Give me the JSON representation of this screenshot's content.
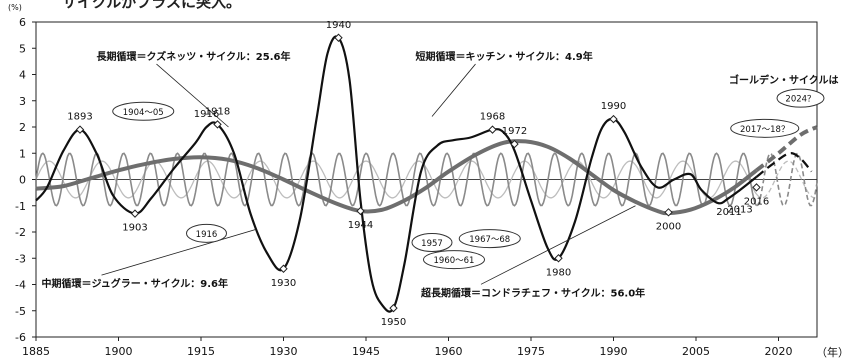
{
  "page": {
    "top_caption": "サイクルがプラスに突入。"
  },
  "chart_data": {
    "type": "line",
    "y_unit": "(%)",
    "x_unit": "（年）",
    "xlim": [
      1885,
      2027
    ],
    "ylim": [
      -6,
      6
    ],
    "x_ticks": [
      1885,
      1900,
      1915,
      1930,
      1945,
      1960,
      1975,
      1990,
      2005,
      2020
    ],
    "y_ticks": [
      6,
      5,
      4,
      3,
      2,
      1,
      0,
      -1,
      -2,
      -3,
      -4,
      -5,
      -6
    ],
    "series": [
      {
        "name": "短期循環＝キッチン・サイクル：4.9年",
        "role": "kitchin",
        "color": "#8a8a8a",
        "period": 4.9,
        "amplitude": 1.0
      },
      {
        "name": "中期循環＝ジュグラー・サイクル：9.6年",
        "role": "juglar",
        "color": "#bdbdbd",
        "period": 9.6,
        "amplitude": 0.7
      },
      {
        "name": "長期循環＝クズネッツ・サイクル：25.6年",
        "role": "kuznets",
        "color": "#111111",
        "period": 25.6,
        "points": [
          [
            1885,
            -0.8
          ],
          [
            1887,
            -0.3
          ],
          [
            1890,
            1.1
          ],
          [
            1893,
            1.9
          ],
          [
            1896,
            1.0
          ],
          [
            1899,
            -0.6
          ],
          [
            1903,
            -1.3
          ],
          [
            1906,
            -0.7
          ],
          [
            1910,
            0.4
          ],
          [
            1914,
            1.4
          ],
          [
            1916,
            2.0
          ],
          [
            1918,
            2.1
          ],
          [
            1921,
            1.0
          ],
          [
            1924,
            -1.3
          ],
          [
            1927,
            -2.8
          ],
          [
            1930,
            -3.4
          ],
          [
            1933,
            -1.5
          ],
          [
            1936,
            2.3
          ],
          [
            1938,
            4.8
          ],
          [
            1940,
            5.4
          ],
          [
            1942,
            3.8
          ],
          [
            1944,
            -0.8
          ],
          [
            1946,
            -3.8
          ],
          [
            1948,
            -4.8
          ],
          [
            1950,
            -4.9
          ],
          [
            1952,
            -3.2
          ],
          [
            1955,
            0.3
          ],
          [
            1958,
            1.3
          ],
          [
            1961,
            1.5
          ],
          [
            1964,
            1.6
          ],
          [
            1968,
            1.9
          ],
          [
            1970,
            1.8
          ],
          [
            1972,
            1.1
          ],
          [
            1975,
            -0.8
          ],
          [
            1978,
            -2.6
          ],
          [
            1980,
            -3.0
          ],
          [
            1983,
            -1.6
          ],
          [
            1986,
            0.8
          ],
          [
            1988,
            2.0
          ],
          [
            1990,
            2.3
          ],
          [
            1992,
            1.8
          ],
          [
            1995,
            0.5
          ],
          [
            1998,
            -0.3
          ],
          [
            2001,
            0.0
          ],
          [
            2004,
            0.2
          ],
          [
            2006,
            -0.4
          ],
          [
            2009,
            -0.9
          ],
          [
            2011,
            -0.7
          ],
          [
            2013,
            -0.4
          ],
          [
            2016,
            0.1
          ]
        ],
        "projection": [
          [
            2016,
            0.1
          ],
          [
            2019,
            0.6
          ],
          [
            2022,
            1.0
          ],
          [
            2024,
            0.8
          ],
          [
            2026,
            0.3
          ]
        ]
      },
      {
        "name": "超長期循環＝コンドラチェフ・サイクル：56.0年",
        "role": "kondratieff",
        "color": "#6e6e6e",
        "period": 56.0,
        "points": [
          [
            1885,
            -0.35
          ],
          [
            1890,
            -0.25
          ],
          [
            1895,
            0.05
          ],
          [
            1900,
            0.35
          ],
          [
            1905,
            0.6
          ],
          [
            1910,
            0.78
          ],
          [
            1915,
            0.85
          ],
          [
            1920,
            0.75
          ],
          [
            1925,
            0.45
          ],
          [
            1930,
            0.0
          ],
          [
            1935,
            -0.5
          ],
          [
            1940,
            -0.95
          ],
          [
            1944,
            -1.2
          ],
          [
            1948,
            -1.15
          ],
          [
            1952,
            -0.8
          ],
          [
            1956,
            -0.3
          ],
          [
            1960,
            0.3
          ],
          [
            1965,
            0.95
          ],
          [
            1970,
            1.4
          ],
          [
            1974,
            1.45
          ],
          [
            1978,
            1.25
          ],
          [
            1982,
            0.8
          ],
          [
            1986,
            0.2
          ],
          [
            1990,
            -0.4
          ],
          [
            1994,
            -0.85
          ],
          [
            1998,
            -1.2
          ],
          [
            2000,
            -1.28
          ],
          [
            2004,
            -1.15
          ],
          [
            2008,
            -0.8
          ],
          [
            2012,
            -0.3
          ],
          [
            2016,
            0.35
          ]
        ],
        "projection": [
          [
            2016,
            0.35
          ],
          [
            2020,
            1.0
          ],
          [
            2024,
            1.7
          ],
          [
            2027,
            2.0
          ]
        ]
      }
    ],
    "point_labels": [
      {
        "text": "1893",
        "x": 1893,
        "y": 1.9,
        "boxed": false,
        "marker": true
      },
      {
        "text": "1903",
        "x": 1903,
        "y": -1.3,
        "boxed": false,
        "marker": true
      },
      {
        "text": "1916",
        "x": 1916,
        "y": 2.0,
        "boxed": false,
        "marker": false
      },
      {
        "text": "1918",
        "x": 1918,
        "y": 2.1,
        "boxed": false,
        "marker": true
      },
      {
        "text": "1930",
        "x": 1930,
        "y": -3.4,
        "boxed": false,
        "marker": true
      },
      {
        "text": "1940",
        "x": 1940,
        "y": 5.4,
        "boxed": false,
        "marker": true
      },
      {
        "text": "1944",
        "x": 1944,
        "y": -1.2,
        "boxed": false,
        "marker": true
      },
      {
        "text": "1950",
        "x": 1950,
        "y": -4.9,
        "boxed": false,
        "marker": true
      },
      {
        "text": "1968",
        "x": 1968,
        "y": 1.9,
        "boxed": false,
        "marker": true
      },
      {
        "text": "1972",
        "x": 1972,
        "y": 1.35,
        "boxed": false,
        "marker": true
      },
      {
        "text": "1980",
        "x": 1980,
        "y": -3.0,
        "boxed": false,
        "marker": true
      },
      {
        "text": "1990",
        "x": 1990,
        "y": 2.3,
        "boxed": false,
        "marker": true
      },
      {
        "text": "2000",
        "x": 2000,
        "y": -1.25,
        "boxed": false,
        "marker": true
      },
      {
        "text": "2011",
        "x": 2011,
        "y": -0.7,
        "boxed": false,
        "marker": false
      },
      {
        "text": "2013",
        "x": 2013,
        "y": -0.6,
        "boxed": false,
        "marker": false
      },
      {
        "text": "2016",
        "x": 2016,
        "y": -0.3,
        "boxed": false,
        "marker": true
      },
      {
        "text": "1904～05",
        "x": 1904.5,
        "y": 2.6,
        "boxed": true,
        "marker": false
      },
      {
        "text": "1916",
        "x": 1916,
        "y": -2.05,
        "boxed": true,
        "marker": false
      },
      {
        "text": "1957",
        "x": 1957,
        "y": -2.4,
        "boxed": true,
        "marker": false
      },
      {
        "text": "1967～68",
        "x": 1967.5,
        "y": -2.25,
        "boxed": true,
        "marker": false
      },
      {
        "text": "1960～61",
        "x": 1961,
        "y": -3.05,
        "boxed": true,
        "marker": false
      },
      {
        "text": "2017～18？",
        "x": 2017.5,
        "y": 1.95,
        "boxed": true,
        "marker": false
      },
      {
        "text": "2024？",
        "x": 2024,
        "y": 3.1,
        "boxed": true,
        "marker": false
      }
    ],
    "annotations": [
      {
        "text": "長期循環＝クズネッツ・サイクル：25.6年",
        "x": 1896,
        "y": 4.55,
        "anchor": "start",
        "lx": 1920,
        "ly": 2.0
      },
      {
        "text": "短期循環＝キッチン・サイクル：4.9年",
        "x": 1954,
        "y": 4.55,
        "anchor": "start",
        "lx": 1957,
        "ly": 2.4
      },
      {
        "text": "中期循環＝ジュグラー・サイクル：9.6年",
        "x": 1886,
        "y": -4.1,
        "anchor": "start",
        "lx": 1925,
        "ly": -1.9
      },
      {
        "text": "超長期循環＝コンドラチェフ・サイクル：56.0年",
        "x": 1955,
        "y": -4.45,
        "anchor": "start",
        "lx": 1994,
        "ly": -1.0
      },
      {
        "text": "ゴールデン・サイクルは",
        "x": 2011,
        "y": 3.65,
        "anchor": "start",
        "lx": null,
        "ly": null
      }
    ]
  }
}
